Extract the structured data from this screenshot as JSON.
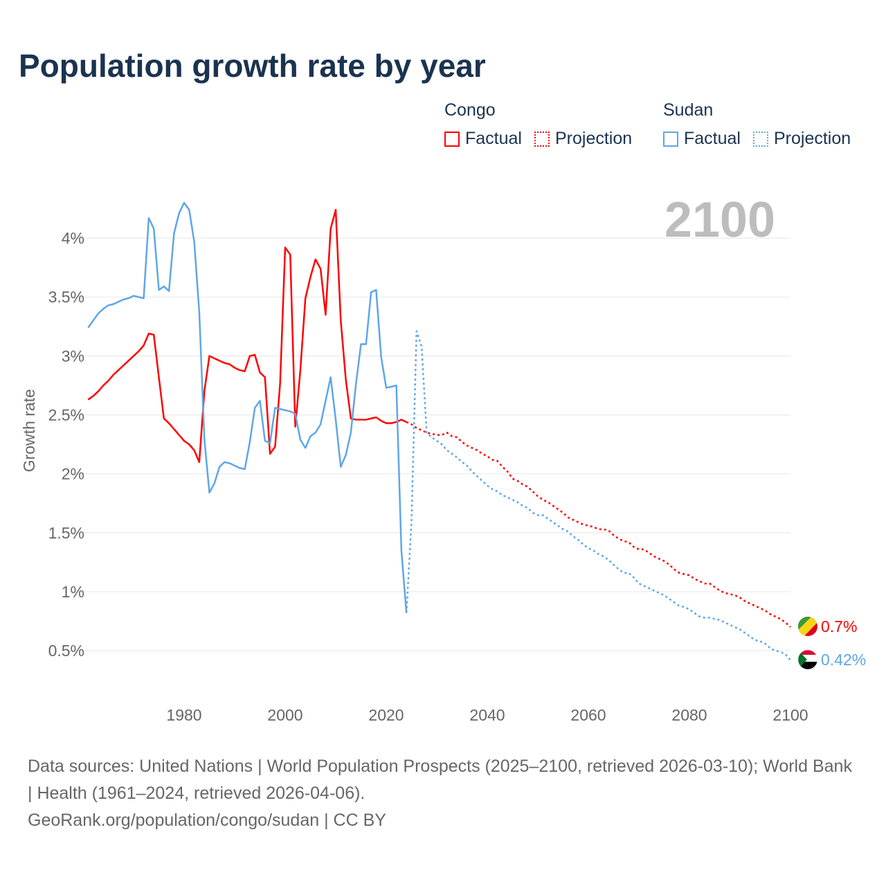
{
  "title": "Population growth rate by year",
  "legend": {
    "groups": [
      {
        "name": "Congo",
        "factual": "Factual",
        "projection": "Projection",
        "color": "#ff0000"
      },
      {
        "name": "Sudan",
        "factual": "Factual",
        "projection": "Projection",
        "color": "#5ea6e8"
      }
    ]
  },
  "year_label": "2100",
  "footer": {
    "sources": "Data sources: United Nations | World Population Prospects (2025–2100, retrieved 2026-03-10); World Bank | Health (1961–2024, retrieved 2026-04-06).",
    "credit": "GeoRank.org/population/congo/sudan | CC BY"
  },
  "chart_data": {
    "type": "line",
    "title": "Population growth rate by year",
    "xlabel": "",
    "ylabel": "Growth rate",
    "xlim": [
      1961,
      2100
    ],
    "ylim": [
      0.3,
      4.3
    ],
    "x_ticks": [
      1980,
      2000,
      2020,
      2040,
      2060,
      2080,
      2100
    ],
    "x_tick_labels": [
      "1980",
      "2000",
      "2020",
      "2040",
      "2060",
      "2080",
      "2100"
    ],
    "y_ticks": [
      0.5,
      1,
      1.5,
      2,
      2.5,
      3,
      3.5,
      4
    ],
    "y_tick_labels": [
      "0.5%",
      "1%",
      "1.5%",
      "2%",
      "2.5%",
      "3%",
      "3.5%",
      "4%"
    ],
    "grid": true,
    "legend_position": "top-right",
    "series": [
      {
        "name": "Congo Factual",
        "color": "#ff0000",
        "dashed": false,
        "start_year": 1961,
        "values": [
          2.63,
          2.66,
          2.7,
          2.75,
          2.79,
          2.84,
          2.88,
          2.92,
          2.96,
          3.0,
          3.04,
          3.09,
          3.19,
          3.18,
          2.82,
          2.47,
          2.43,
          2.38,
          2.33,
          2.28,
          2.25,
          2.2,
          2.1,
          2.7,
          3.0,
          2.98,
          2.96,
          2.94,
          2.93,
          2.9,
          2.88,
          2.87,
          3.0,
          3.01,
          2.86,
          2.82,
          2.17,
          2.23,
          2.77,
          3.92,
          3.86,
          2.4,
          2.88,
          3.49,
          3.67,
          3.82,
          3.74,
          3.35,
          4.08,
          4.24,
          3.3,
          2.8,
          2.47,
          2.46,
          2.46,
          2.46,
          2.47,
          2.48,
          2.45,
          2.43,
          2.43,
          2.44,
          2.46,
          2.44
        ]
      },
      {
        "name": "Congo Projection",
        "color": "#ff0000",
        "dashed": true,
        "start_year": 2024,
        "values": [
          2.44,
          2.42,
          2.39,
          2.37,
          2.35,
          2.34,
          2.33,
          2.33,
          2.35,
          2.32,
          2.31,
          2.27,
          2.24,
          2.22,
          2.2,
          2.17,
          2.15,
          2.12,
          2.11,
          2.06,
          2.02,
          1.96,
          1.94,
          1.91,
          1.89,
          1.85,
          1.81,
          1.78,
          1.76,
          1.73,
          1.7,
          1.67,
          1.63,
          1.61,
          1.59,
          1.57,
          1.56,
          1.55,
          1.53,
          1.53,
          1.52,
          1.48,
          1.45,
          1.43,
          1.42,
          1.38,
          1.36,
          1.36,
          1.33,
          1.3,
          1.28,
          1.26,
          1.23,
          1.19,
          1.16,
          1.15,
          1.14,
          1.11,
          1.09,
          1.07,
          1.07,
          1.04,
          1.01,
          0.99,
          0.98,
          0.97,
          0.95,
          0.92,
          0.9,
          0.88,
          0.86,
          0.84,
          0.81,
          0.79,
          0.77,
          0.74,
          0.7
        ]
      },
      {
        "name": "Sudan Factual",
        "color": "#5ea6e8",
        "dashed": false,
        "start_year": 1961,
        "values": [
          3.24,
          3.3,
          3.36,
          3.4,
          3.43,
          3.44,
          3.46,
          3.48,
          3.49,
          3.51,
          3.5,
          3.49,
          4.17,
          4.08,
          3.56,
          3.59,
          3.55,
          4.04,
          4.21,
          4.3,
          4.24,
          3.97,
          3.37,
          2.3,
          1.84,
          1.92,
          2.06,
          2.1,
          2.09,
          2.07,
          2.05,
          2.04,
          2.27,
          2.56,
          2.62,
          2.28,
          2.26,
          2.56,
          2.55,
          2.54,
          2.53,
          2.51,
          2.29,
          2.22,
          2.32,
          2.35,
          2.42,
          2.62,
          2.82,
          2.46,
          2.06,
          2.16,
          2.35,
          2.76,
          3.1,
          3.1,
          3.54,
          3.56,
          2.99,
          2.73,
          2.74,
          2.75,
          1.35,
          0.82
        ]
      },
      {
        "name": "Sudan Projection",
        "color": "#5ea6e8",
        "dashed": true,
        "start_year": 2024,
        "values": [
          0.82,
          1.6,
          3.21,
          3.08,
          2.35,
          2.31,
          2.28,
          2.25,
          2.2,
          2.17,
          2.14,
          2.1,
          2.07,
          2.02,
          1.98,
          1.94,
          1.9,
          1.87,
          1.85,
          1.82,
          1.8,
          1.78,
          1.76,
          1.73,
          1.71,
          1.67,
          1.65,
          1.65,
          1.62,
          1.59,
          1.56,
          1.53,
          1.51,
          1.47,
          1.44,
          1.4,
          1.37,
          1.35,
          1.32,
          1.3,
          1.27,
          1.23,
          1.19,
          1.16,
          1.16,
          1.12,
          1.07,
          1.05,
          1.03,
          1.01,
          0.99,
          0.97,
          0.94,
          0.91,
          0.88,
          0.87,
          0.85,
          0.82,
          0.79,
          0.78,
          0.78,
          0.77,
          0.76,
          0.74,
          0.72,
          0.7,
          0.68,
          0.65,
          0.62,
          0.59,
          0.58,
          0.56,
          0.52,
          0.5,
          0.49,
          0.47,
          0.42
        ]
      }
    ],
    "end_labels": [
      {
        "country": "Congo",
        "label": "0.7%",
        "value": 0.7,
        "color": "#ff0000"
      },
      {
        "country": "Sudan",
        "label": "0.42%",
        "value": 0.42,
        "color": "#5ea6e8"
      }
    ]
  }
}
